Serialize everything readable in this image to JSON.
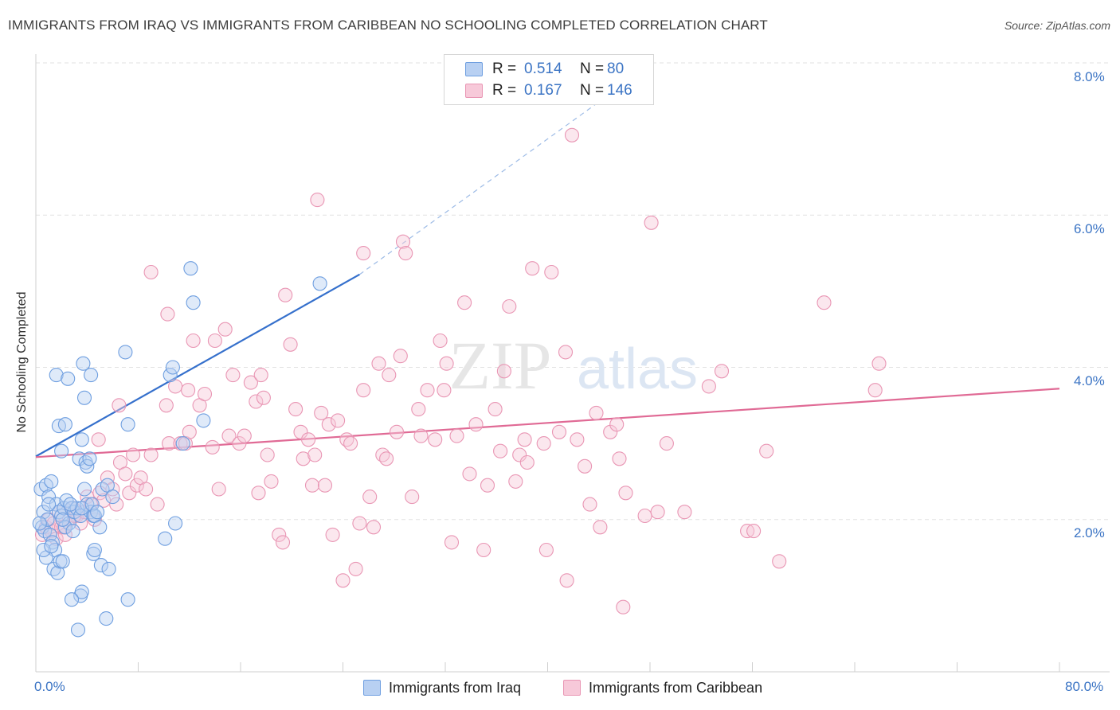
{
  "title": "IMMIGRANTS FROM IRAQ VS IMMIGRANTS FROM CARIBBEAN NO SCHOOLING COMPLETED CORRELATION CHART",
  "source": "Source: ZipAtlas.com",
  "watermark": {
    "zip": "ZIP",
    "atlas": "atlas"
  },
  "legend": {
    "rows": [
      {
        "r_label": "R =",
        "r_value": "0.514",
        "n_label": "N =",
        "n_value": "80"
      },
      {
        "r_label": "R =",
        "r_value": "0.167",
        "n_label": "N =",
        "n_value": "146"
      }
    ]
  },
  "bottom_legend": {
    "iraq": "Immigrants from Iraq",
    "caribbean": "Immigrants from Caribbean"
  },
  "axis_text": {
    "x_min": "0.0%",
    "x_max": "80.0%",
    "y_ticks": [
      "2.0%",
      "4.0%",
      "6.0%",
      "8.0%"
    ]
  },
  "colors": {
    "iraq": "#6f9fe0",
    "iraq_fill": "#b8d0f2",
    "iraq_line": "#3570cc",
    "caribbean": "#e996b4",
    "caribbean_fill": "#f7c9d9",
    "caribbean_line": "#e06a95",
    "accent_text": "#3b74c4"
  },
  "chart_data": {
    "type": "scatter",
    "title": "IMMIGRANTS FROM IRAQ VS IMMIGRANTS FROM CARIBBEAN NO SCHOOLING COMPLETED CORRELATION CHART",
    "xlabel": "",
    "ylabel": "No Schooling Completed",
    "xlim": [
      0,
      80
    ],
    "ylim": [
      0,
      8.3
    ],
    "y_ticks": [
      2,
      4,
      6,
      8
    ],
    "grid": true,
    "series": [
      {
        "name": "Immigrants from Iraq",
        "r": 0.514,
        "n": 80,
        "trend": {
          "x0": 0,
          "y0": 2.83,
          "x1": 25.3,
          "y1": 5.22,
          "dashed_to_x": 43.7,
          "dashed_to_y": 7.45
        },
        "points": [
          [
            0.4,
            2.4
          ],
          [
            0.6,
            2.1
          ],
          [
            0.8,
            2.45
          ],
          [
            1.0,
            2.3
          ],
          [
            1.2,
            2.5
          ],
          [
            0.5,
            1.9
          ],
          [
            0.7,
            1.85
          ],
          [
            0.9,
            2.0
          ],
          [
            1.1,
            1.8
          ],
          [
            0.3,
            1.95
          ],
          [
            1.3,
            1.7
          ],
          [
            1.5,
            1.6
          ],
          [
            0.8,
            1.5
          ],
          [
            1.6,
            2.2
          ],
          [
            1.8,
            2.1
          ],
          [
            2.0,
            2.05
          ],
          [
            2.2,
            2.15
          ],
          [
            2.4,
            2.25
          ],
          [
            2.6,
            1.95
          ],
          [
            1.4,
            1.35
          ],
          [
            1.7,
            1.3
          ],
          [
            1.9,
            1.45
          ],
          [
            2.1,
            1.45
          ],
          [
            0.6,
            1.6
          ],
          [
            1.2,
            1.65
          ],
          [
            2.8,
            2.15
          ],
          [
            3.0,
            2.1
          ],
          [
            3.2,
            2.15
          ],
          [
            3.5,
            2.05
          ],
          [
            3.8,
            2.4
          ],
          [
            4.0,
            2.2
          ],
          [
            4.3,
            2.1
          ],
          [
            4.5,
            2.05
          ],
          [
            3.6,
            2.15
          ],
          [
            2.7,
            2.2
          ],
          [
            2.3,
            1.9
          ],
          [
            2.9,
            1.85
          ],
          [
            1.8,
            3.23
          ],
          [
            2.3,
            3.25
          ],
          [
            3.4,
            2.8
          ],
          [
            3.6,
            3.05
          ],
          [
            2.0,
            2.9
          ],
          [
            3.9,
            2.75
          ],
          [
            1.6,
            3.9
          ],
          [
            2.5,
            3.85
          ],
          [
            3.7,
            4.05
          ],
          [
            4.3,
            3.9
          ],
          [
            3.8,
            3.6
          ],
          [
            4.0,
            2.7
          ],
          [
            4.5,
            1.55
          ],
          [
            4.6,
            1.6
          ],
          [
            4.4,
            2.2
          ],
          [
            4.6,
            2.05
          ],
          [
            4.8,
            2.1
          ],
          [
            5.0,
            1.9
          ],
          [
            5.2,
            2.4
          ],
          [
            5.1,
            1.4
          ],
          [
            5.7,
            1.35
          ],
          [
            5.6,
            2.45
          ],
          [
            6.0,
            2.3
          ],
          [
            3.5,
            1.0
          ],
          [
            3.6,
            1.05
          ],
          [
            2.8,
            0.95
          ],
          [
            3.3,
            0.55
          ],
          [
            5.5,
            0.7
          ],
          [
            7.2,
            0.95
          ],
          [
            7.0,
            4.2
          ],
          [
            7.2,
            3.25
          ],
          [
            10.1,
            1.75
          ],
          [
            10.5,
            3.9
          ],
          [
            10.7,
            4.0
          ],
          [
            10.9,
            1.95
          ],
          [
            11.5,
            3.0
          ],
          [
            12.1,
            5.3
          ],
          [
            12.3,
            4.85
          ],
          [
            13.1,
            3.3
          ],
          [
            22.2,
            5.1
          ],
          [
            4.2,
            2.8
          ],
          [
            2.1,
            2.0
          ],
          [
            1.0,
            2.2
          ]
        ]
      },
      {
        "name": "Immigrants from Caribbean",
        "r": 0.167,
        "n": 146,
        "trend": {
          "x0": 0,
          "y0": 2.82,
          "x1": 80,
          "y1": 3.72
        },
        "points": [
          [
            0.5,
            1.8
          ],
          [
            0.8,
            1.9
          ],
          [
            1.0,
            2.0
          ],
          [
            1.2,
            1.85
          ],
          [
            1.4,
            1.95
          ],
          [
            1.6,
            1.75
          ],
          [
            1.8,
            2.1
          ],
          [
            2.0,
            1.9
          ],
          [
            2.3,
            1.8
          ],
          [
            2.6,
            2.0
          ],
          [
            2.9,
            2.15
          ],
          [
            3.2,
            2.05
          ],
          [
            3.5,
            1.95
          ],
          [
            3.8,
            2.1
          ],
          [
            4.0,
            2.3
          ],
          [
            4.3,
            2.2
          ],
          [
            4.6,
            2.0
          ],
          [
            5.0,
            2.35
          ],
          [
            5.3,
            2.25
          ],
          [
            5.6,
            2.55
          ],
          [
            6.0,
            2.4
          ],
          [
            6.3,
            2.2
          ],
          [
            6.6,
            2.75
          ],
          [
            7.0,
            2.6
          ],
          [
            7.3,
            2.35
          ],
          [
            7.6,
            2.85
          ],
          [
            7.9,
            2.45
          ],
          [
            8.2,
            2.55
          ],
          [
            8.6,
            2.4
          ],
          [
            9.0,
            2.85
          ],
          [
            4.9,
            3.05
          ],
          [
            6.5,
            3.5
          ],
          [
            9.0,
            5.25
          ],
          [
            9.5,
            2.2
          ],
          [
            10.2,
            3.5
          ],
          [
            10.4,
            3.0
          ],
          [
            10.3,
            4.7
          ],
          [
            10.9,
            3.75
          ],
          [
            11.3,
            3.0
          ],
          [
            11.7,
            3.0
          ],
          [
            11.9,
            3.7
          ],
          [
            12.0,
            3.15
          ],
          [
            12.3,
            4.35
          ],
          [
            12.8,
            3.5
          ],
          [
            13.2,
            3.65
          ],
          [
            13.8,
            2.95
          ],
          [
            14.0,
            4.35
          ],
          [
            14.3,
            2.4
          ],
          [
            14.8,
            4.5
          ],
          [
            15.1,
            3.1
          ],
          [
            15.4,
            3.9
          ],
          [
            15.9,
            3.0
          ],
          [
            16.3,
            3.1
          ],
          [
            16.8,
            3.8
          ],
          [
            17.2,
            3.55
          ],
          [
            17.4,
            2.35
          ],
          [
            17.6,
            3.9
          ],
          [
            17.8,
            3.6
          ],
          [
            18.1,
            2.85
          ],
          [
            18.4,
            2.5
          ],
          [
            19.0,
            1.8
          ],
          [
            19.3,
            1.7
          ],
          [
            19.5,
            4.95
          ],
          [
            19.9,
            4.3
          ],
          [
            20.3,
            3.45
          ],
          [
            20.7,
            3.15
          ],
          [
            20.9,
            2.8
          ],
          [
            21.3,
            3.05
          ],
          [
            21.6,
            2.45
          ],
          [
            21.8,
            2.85
          ],
          [
            22.0,
            6.2
          ],
          [
            22.3,
            3.4
          ],
          [
            22.6,
            2.45
          ],
          [
            22.9,
            3.25
          ],
          [
            23.2,
            1.8
          ],
          [
            23.6,
            3.3
          ],
          [
            24.0,
            1.2
          ],
          [
            24.3,
            3.05
          ],
          [
            24.6,
            3.0
          ],
          [
            25.0,
            1.35
          ],
          [
            25.3,
            1.95
          ],
          [
            25.6,
            3.7
          ],
          [
            25.6,
            5.5
          ],
          [
            26.1,
            2.3
          ],
          [
            26.4,
            1.9
          ],
          [
            26.8,
            4.05
          ],
          [
            27.1,
            2.85
          ],
          [
            27.4,
            2.8
          ],
          [
            27.6,
            3.9
          ],
          [
            28.2,
            3.15
          ],
          [
            28.5,
            4.15
          ],
          [
            28.7,
            5.65
          ],
          [
            28.9,
            5.5
          ],
          [
            29.4,
            2.3
          ],
          [
            29.9,
            3.45
          ],
          [
            30.1,
            3.1
          ],
          [
            30.6,
            3.7
          ],
          [
            31.2,
            3.05
          ],
          [
            31.6,
            4.35
          ],
          [
            31.9,
            3.7
          ],
          [
            32.1,
            4.05
          ],
          [
            32.5,
            1.7
          ],
          [
            32.9,
            3.1
          ],
          [
            33.5,
            4.85
          ],
          [
            33.9,
            2.6
          ],
          [
            34.4,
            3.25
          ],
          [
            35.0,
            1.6
          ],
          [
            35.3,
            2.45
          ],
          [
            35.9,
            3.45
          ],
          [
            36.3,
            2.9
          ],
          [
            36.6,
            3.95
          ],
          [
            37.0,
            4.8
          ],
          [
            37.5,
            2.5
          ],
          [
            37.8,
            2.85
          ],
          [
            38.2,
            3.05
          ],
          [
            38.4,
            2.75
          ],
          [
            38.8,
            5.3
          ],
          [
            39.7,
            3.0
          ],
          [
            39.9,
            1.6
          ],
          [
            40.3,
            5.25
          ],
          [
            40.9,
            3.15
          ],
          [
            41.4,
            4.2
          ],
          [
            41.5,
            1.2
          ],
          [
            41.9,
            7.05
          ],
          [
            42.3,
            3.05
          ],
          [
            42.9,
            2.7
          ],
          [
            43.3,
            2.2
          ],
          [
            43.8,
            3.4
          ],
          [
            44.1,
            1.9
          ],
          [
            44.9,
            3.15
          ],
          [
            45.4,
            3.25
          ],
          [
            45.6,
            2.8
          ],
          [
            45.9,
            0.85
          ],
          [
            46.1,
            2.35
          ],
          [
            47.6,
            2.05
          ],
          [
            48.1,
            5.9
          ],
          [
            48.6,
            2.1
          ],
          [
            49.3,
            3.0
          ],
          [
            50.7,
            2.1
          ],
          [
            52.6,
            3.75
          ],
          [
            53.6,
            3.95
          ],
          [
            55.6,
            1.85
          ],
          [
            56.1,
            1.85
          ],
          [
            57.1,
            2.9
          ],
          [
            58.1,
            1.45
          ],
          [
            61.6,
            4.85
          ],
          [
            65.6,
            3.7
          ],
          [
            65.9,
            4.05
          ],
          [
            2.2,
            1.9
          ],
          [
            3.0,
            2.05
          ]
        ]
      }
    ]
  }
}
